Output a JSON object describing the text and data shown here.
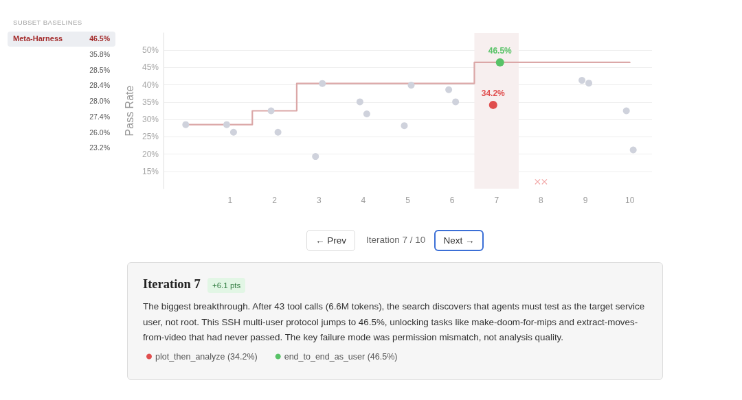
{
  "chart_data": [
    {
      "type": "other",
      "title": "SUBSET BASELINES",
      "categories": [
        "Meta-Harness",
        null,
        null,
        null,
        null,
        null,
        null,
        null
      ],
      "annotations": [
        "46.5%",
        "35.8%",
        "28.5%",
        "28.4%",
        "28.0%",
        "27.4%",
        "26.0%",
        "23.2%"
      ]
    },
    {
      "type": "step",
      "ylabel": "Pass Rate",
      "categories": [
        null,
        "1",
        "2",
        "3",
        "4",
        "5",
        "6",
        "7",
        "8",
        "9",
        "10"
      ],
      "ylim": [
        10,
        55
      ],
      "yticks": [
        {
          "value": 15,
          "label": "15%"
        },
        {
          "value": 20,
          "label": "20%"
        },
        {
          "value": 25,
          "label": "25%"
        },
        {
          "value": 30,
          "label": "30%"
        },
        {
          "value": 35,
          "label": "35%"
        },
        {
          "value": 40,
          "label": "40%"
        },
        {
          "value": 45,
          "label": "45%"
        },
        {
          "value": 50,
          "label": "50%"
        }
      ],
      "grid": "y",
      "legend": "bottom left",
      "bands": [
        {
          "axis": "x",
          "from": "7",
          "to": "7",
          "color": "#f7efef"
        }
      ],
      "series": [
        {
          "color": "#dba7a7",
          "marker": "none",
          "values": [
            28.5,
            28.5,
            32.5,
            40.4,
            40.4,
            40.4,
            40.4,
            46.5,
            46.5,
            46.5,
            46.5
          ]
        },
        {
          "type": "scatter",
          "color": "#cfd2dc",
          "marker": "circle",
          "values": [
            28.5,
            28.5,
            32.5,
            19.3,
            35.1,
            28.2,
            38.6,
            null,
            null,
            41.3,
            32.5
          ]
        },
        {
          "type": "scatter",
          "color": "#cfd2dc",
          "marker": "circle",
          "values": [
            null,
            26.3,
            26.3,
            40.4,
            31.6,
            39.9,
            35.1,
            null,
            null,
            40.5,
            21.2
          ]
        },
        {
          "type": "scatter",
          "name": "plot_then_analyze (34.2%)",
          "color": "#e04e4e",
          "marker": "circle",
          "values": [
            null,
            null,
            null,
            null,
            null,
            null,
            null,
            34.2,
            null,
            null,
            null
          ],
          "value_labels": [
            null,
            null,
            null,
            null,
            null,
            null,
            null,
            "34.2%",
            null,
            null,
            null
          ]
        },
        {
          "type": "scatter",
          "name": "end_to_end_as_user (46.5%)",
          "color": "#58c267",
          "marker": "circle",
          "values": [
            null,
            null,
            null,
            null,
            null,
            null,
            null,
            46.5,
            null,
            null,
            null
          ],
          "value_labels": [
            null,
            null,
            null,
            null,
            null,
            null,
            null,
            "46.5%",
            null,
            null,
            null
          ]
        },
        {
          "type": "scatter",
          "color": "#f2a8a8",
          "marker": "cross",
          "values": [
            null,
            null,
            null,
            null,
            null,
            null,
            null,
            null,
            12,
            null,
            null
          ]
        },
        {
          "type": "scatter",
          "color": "#f2a8a8",
          "marker": "cross",
          "values": [
            null,
            null,
            null,
            null,
            null,
            null,
            null,
            null,
            12,
            null,
            null
          ]
        }
      ],
      "annotations": [
        "← Prev",
        "Iteration 7 / 10",
        "Next →",
        "Iteration 7",
        "+6.1 pts",
        "The biggest breakthrough. After 43 tool calls (6.6M tokens), the search discovers that agents must test as the target service user, not root. This SSH multi-user protocol jumps to 46.5%, unlocking tasks like make-doom-for-mips and extract-moves-from-video that had never passed. The key failure mode was permission mismatch, not analysis quality."
      ]
    }
  ]
}
